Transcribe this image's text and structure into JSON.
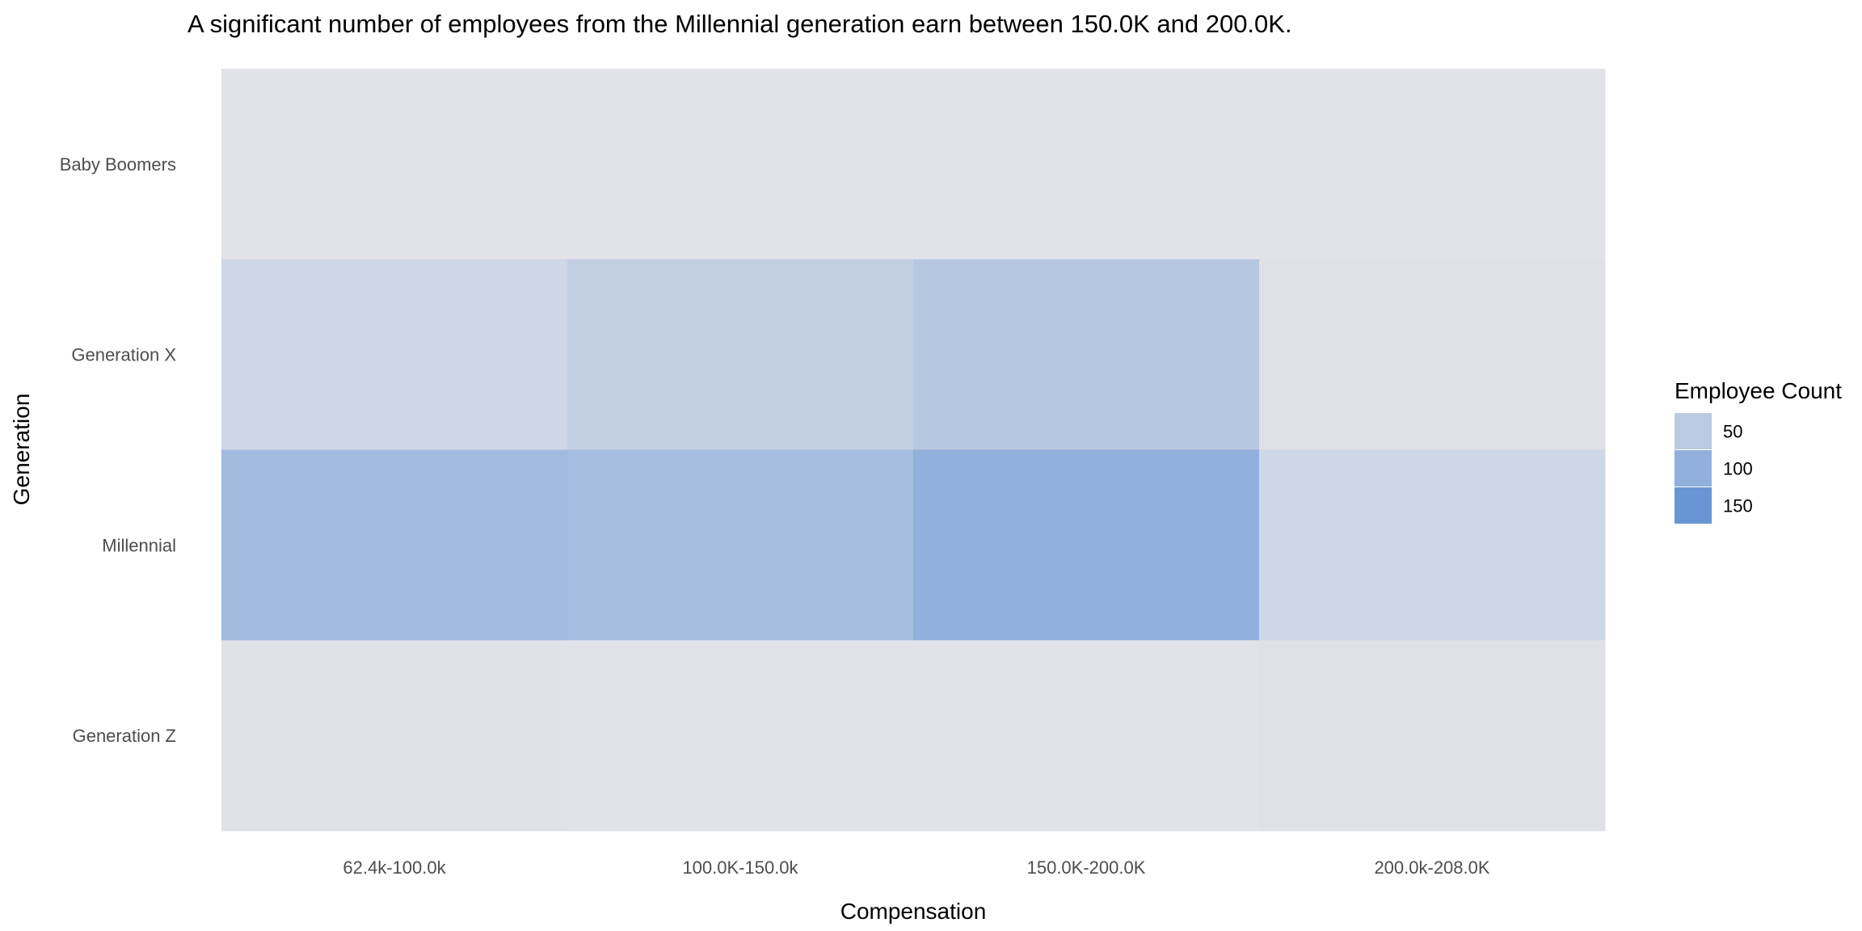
{
  "chart_data": {
    "type": "heatmap",
    "title": "A significant number of employees from the Millennial generation earn between 150.0K and 200.0K.",
    "xlabel": "Compensation",
    "ylabel": "Generation",
    "x_categories": [
      "62.4k-100.0k",
      "100.0K-150.0k",
      "150.0K-200.0K",
      "200.0k-208.0K"
    ],
    "y_categories": [
      "Baby Boomers",
      "Generation X",
      "Millennial",
      "Generation Z"
    ],
    "values": [
      [
        1,
        1,
        1,
        1
      ],
      [
        25,
        40,
        55,
        5
      ],
      [
        80,
        75,
        100,
        25
      ],
      [
        3,
        2,
        2,
        5
      ]
    ],
    "value_range": [
      0,
      180
    ],
    "color_low": "#e3e4e8",
    "color_high": "#4f86d0",
    "legend": {
      "title": "Employee Count",
      "position": "right",
      "breaks": [
        50,
        100,
        150
      ],
      "labels": [
        "50",
        "100",
        "150"
      ]
    }
  }
}
